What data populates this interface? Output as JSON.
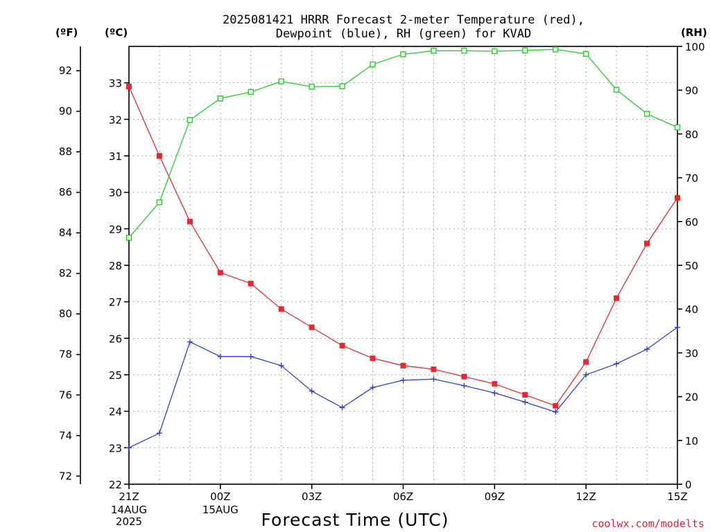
{
  "title_lines": [
    "2025081421 HRRR Forecast 2-meter Temperature (red),",
    "Dewpoint (blue), RH (green) for KVAD"
  ],
  "units": {
    "fahrenheit": "(ºF)",
    "celsius": "(ºC)",
    "rh": "(RH)"
  },
  "xlabel": "Forecast Time (UTC)",
  "credit": "coolwx.com/modelts",
  "colors": {
    "temperature": "#e8272f",
    "dewpoint": "#2a3fe0",
    "rh": "#1fd11f",
    "grid": "#a8a8a8"
  },
  "chart_data": {
    "type": "line",
    "x": [
      0,
      1,
      2,
      3,
      4,
      5,
      6,
      7,
      8,
      9,
      10,
      11,
      12,
      13,
      14,
      15,
      16,
      17,
      18
    ],
    "x_ticks": [
      {
        "x": 0,
        "label": "21Z",
        "sub": [
          "14AUG",
          "2025"
        ]
      },
      {
        "x": 3,
        "label": "00Z",
        "sub": [
          "15AUG"
        ]
      },
      {
        "x": 6,
        "label": "03Z",
        "sub": []
      },
      {
        "x": 9,
        "label": "06Z",
        "sub": []
      },
      {
        "x": 12,
        "label": "09Z",
        "sub": []
      },
      {
        "x": 15,
        "label": "12Z",
        "sub": []
      },
      {
        "x": 18,
        "label": "15Z",
        "sub": []
      }
    ],
    "celsius_axis": {
      "ylim": [
        22,
        34
      ],
      "ticks": [
        22,
        23,
        24,
        25,
        26,
        27,
        28,
        29,
        30,
        31,
        32,
        33
      ]
    },
    "fahrenheit_axis": {
      "ylim": [
        71.6,
        93.2
      ],
      "ticks": [
        72,
        74,
        76,
        78,
        80,
        82,
        84,
        86,
        88,
        90,
        92
      ]
    },
    "rh_axis": {
      "ylim": [
        0,
        100
      ],
      "ticks": [
        0,
        10,
        20,
        30,
        40,
        50,
        60,
        70,
        80,
        90,
        100
      ]
    },
    "grid": true,
    "series": [
      {
        "key": "temperature",
        "marker": "filled-square",
        "axis": "celsius",
        "values": [
          32.9,
          31.0,
          29.2,
          27.8,
          27.5,
          26.8,
          26.3,
          25.8,
          25.45,
          25.25,
          25.15,
          24.95,
          24.75,
          24.45,
          24.15,
          25.35,
          27.1,
          28.6,
          29.85
        ]
      },
      {
        "key": "dewpoint",
        "marker": "plus",
        "axis": "celsius",
        "values": [
          23.0,
          23.4,
          25.9,
          25.5,
          25.5,
          25.25,
          24.55,
          24.1,
          24.65,
          24.85,
          24.88,
          24.7,
          24.5,
          24.25,
          23.98,
          25.0,
          25.3,
          25.7,
          26.3
        ]
      },
      {
        "key": "rh",
        "marker": "open-square",
        "axis": "rh",
        "values": [
          56.3,
          64.4,
          83.2,
          88.1,
          89.6,
          92.0,
          90.8,
          90.9,
          95.9,
          98.2,
          99.0,
          99.0,
          98.9,
          99.1,
          99.3,
          98.3,
          90.1,
          84.6,
          81.5
        ]
      }
    ]
  }
}
